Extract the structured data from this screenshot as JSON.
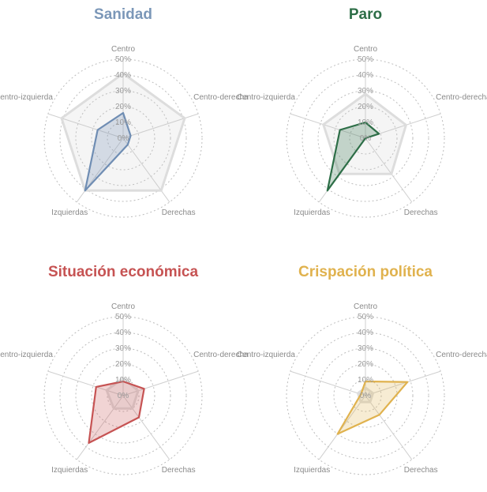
{
  "chart_data": [
    {
      "type": "radar",
      "title": "Sanidad",
      "title_color": "#7b97b8",
      "axes": [
        "Centro",
        "Centro-derecha",
        "Derechas",
        "Izquierdas",
        "Centro-izquierda"
      ],
      "ticks": [
        "0%",
        "10%",
        "20%",
        "30%",
        "40%",
        "50%"
      ],
      "rlim": [
        0,
        50
      ],
      "series": [
        {
          "values": [
            41,
            41,
            41,
            41,
            41
          ],
          "color": "#dddddd",
          "role": "reference"
        },
        {
          "values": [
            16,
            5,
            5,
            41,
            17
          ],
          "color": "#6f8db3"
        }
      ]
    },
    {
      "type": "radar",
      "title": "Paro",
      "title_color": "#2d6e47",
      "axes": [
        "Centro",
        "Centro-derecha",
        "Derechas",
        "Izquierdas",
        "Centro-izquierda"
      ],
      "ticks": [
        "0%",
        "10%",
        "20%",
        "30%",
        "40%",
        "50%"
      ],
      "rlim": [
        0,
        50
      ],
      "series": [
        {
          "values": [
            28,
            27,
            28,
            28,
            28
          ],
          "color": "#dddddd",
          "role": "reference"
        },
        {
          "values": [
            10,
            9,
            0,
            41,
            17
          ],
          "color": "#2d6e47"
        }
      ]
    },
    {
      "type": "radar",
      "title": "Situación económica",
      "title_color": "#c65353",
      "axes": [
        "Centro",
        "Centro-derecha",
        "Derechas",
        "Izquierdas",
        "Centro-izquierda"
      ],
      "ticks": [
        "0%",
        "10%",
        "20%",
        "30%",
        "40%",
        "50%"
      ],
      "rlim": [
        0,
        50
      ],
      "series": [
        {
          "values": [
            11,
            10,
            10,
            10,
            11
          ],
          "color": "#dddddd",
          "role": "reference"
        },
        {
          "values": [
            9,
            14,
            17,
            37,
            18
          ],
          "color": "#c65353"
        }
      ]
    },
    {
      "type": "radar",
      "title": "Crispación política",
      "title_color": "#e0b24e",
      "axes": [
        "Centro",
        "Centro-derecha",
        "Derechas",
        "Izquierdas",
        "Centro-izquierda"
      ],
      "ticks": [
        "0%",
        "10%",
        "20%",
        "30%",
        "40%",
        "50%"
      ],
      "rlim": [
        0,
        50
      ],
      "series": [
        {
          "values": [
            5,
            5,
            5,
            5,
            5
          ],
          "color": "#dddddd",
          "role": "reference"
        },
        {
          "values": [
            9,
            28,
            15,
            30,
            3
          ],
          "color": "#e0b24e"
        }
      ]
    }
  ]
}
